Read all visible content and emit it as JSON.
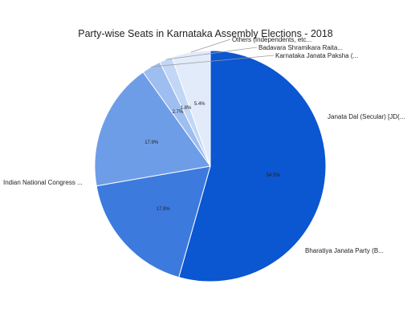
{
  "chart_data": {
    "type": "pie",
    "title": "Party-wise Seats in Karnataka Assembly Elections - 2018",
    "slices": [
      {
        "label": "Indian National Congress ...",
        "value": 54.5,
        "pct_label": "54.5%",
        "color": "#0b56d1"
      },
      {
        "label": "Bharatiya Janata Party (B...",
        "value": 17.9,
        "pct_label": "17.9%",
        "color": "#3d7ade"
      },
      {
        "label": "Janata Dal (Secular) [JD(...",
        "value": 17.9,
        "pct_label": "17.9%",
        "color": "#6e9de8"
      },
      {
        "label": "Karnataka Janata Paksha (...",
        "value": 2.7,
        "pct_label": "2.7%",
        "color": "#9ebdf0"
      },
      {
        "label": "Badavara Shramikara Raita...",
        "value": 1.8,
        "pct_label": "1.8%",
        "color": "#c2d6f5"
      },
      {
        "label": "Others (Independents, etc...",
        "value": 5.4,
        "pct_label": "5.4%",
        "color": "#e2ebfa"
      }
    ],
    "start": "top",
    "direction": "clockwise",
    "legend": "none (labels beside slices)"
  }
}
